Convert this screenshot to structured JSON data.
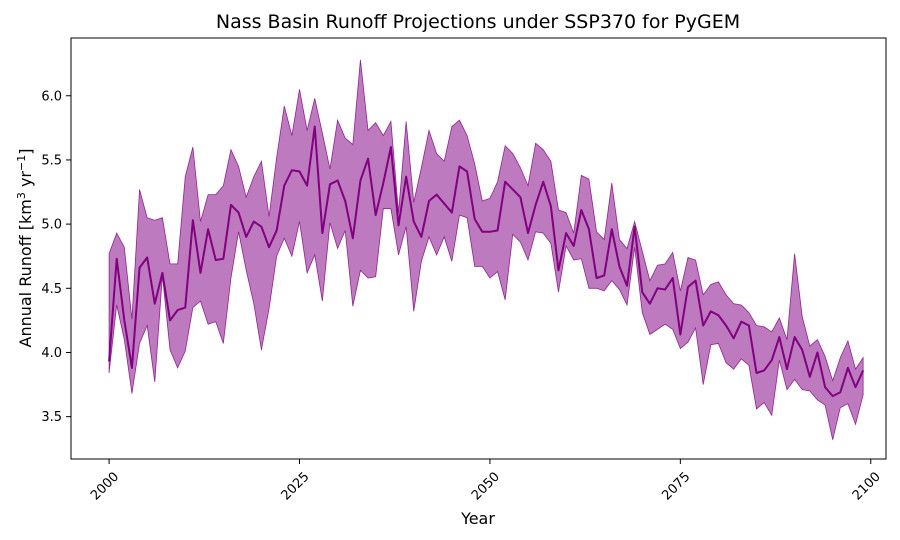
{
  "chart_data": {
    "type": "area",
    "title": "Nass Basin Runoff Projections under SSP370 for PyGEM",
    "xlabel": "Year",
    "ylabel_main": "Annual Runoff [km",
    "ylabel_sup1": "3",
    "ylabel_mid": " yr",
    "ylabel_sup2": "−1",
    "ylabel_end": "]",
    "xlim": [
      1995,
      2102
    ],
    "ylim": [
      3.17,
      6.45
    ],
    "xticks": [
      2000,
      2025,
      2050,
      2075,
      2100
    ],
    "xtick_labels": [
      "2000",
      "2025",
      "2050",
      "2075",
      "2100"
    ],
    "yticks": [
      3.5,
      4.0,
      4.5,
      5.0,
      5.5,
      6.0
    ],
    "ytick_labels": [
      "3.5",
      "4.0",
      "4.5",
      "5.0",
      "5.5",
      "6.0"
    ],
    "line_color": "#800080",
    "band_color": "#a241a2",
    "years_start": 2000,
    "mean": [
      3.93,
      4.73,
      4.25,
      3.88,
      4.66,
      4.74,
      4.38,
      4.62,
      4.25,
      4.33,
      4.35,
      5.03,
      4.62,
      4.96,
      4.72,
      4.73,
      5.15,
      5.09,
      4.9,
      5.02,
      4.98,
      4.82,
      4.95,
      5.3,
      5.42,
      5.41,
      5.3,
      5.76,
      4.93,
      5.31,
      5.34,
      5.18,
      4.89,
      5.34,
      5.51,
      5.07,
      5.32,
      5.6,
      4.99,
      5.37,
      5.02,
      4.9,
      5.18,
      5.23,
      5.16,
      5.09,
      5.45,
      5.41,
      5.04,
      4.94,
      4.94,
      4.95,
      5.33,
      5.27,
      5.21,
      4.93,
      5.15,
      5.33,
      5.14,
      4.64,
      4.93,
      4.83,
      5.11,
      4.96,
      4.58,
      4.6,
      4.96,
      4.67,
      4.52,
      4.98,
      4.47,
      4.38,
      4.5,
      4.49,
      4.58,
      4.14,
      4.51,
      4.56,
      4.21,
      4.32,
      4.29,
      4.21,
      4.11,
      4.24,
      4.21,
      3.84,
      3.86,
      3.94,
      4.12,
      3.87,
      4.12,
      4.02,
      3.81,
      4.0,
      3.73,
      3.66,
      3.69,
      3.88,
      3.73,
      3.86
    ],
    "upper": [
      4.77,
      4.93,
      4.82,
      4.26,
      5.27,
      5.05,
      5.03,
      5.05,
      4.69,
      4.69,
      5.37,
      5.6,
      5.02,
      5.23,
      5.23,
      5.3,
      5.58,
      5.45,
      5.21,
      5.37,
      5.49,
      5.06,
      5.52,
      5.92,
      5.69,
      6.05,
      5.73,
      5.98,
      5.71,
      5.43,
      5.81,
      5.67,
      5.62,
      6.28,
      5.73,
      5.79,
      5.69,
      5.8,
      5.09,
      5.8,
      5.17,
      5.44,
      5.73,
      5.55,
      5.49,
      5.76,
      5.81,
      5.69,
      5.47,
      5.18,
      5.2,
      5.33,
      5.61,
      5.55,
      5.44,
      5.3,
      5.63,
      5.58,
      5.49,
      5.11,
      5.09,
      4.93,
      5.38,
      5.35,
      4.94,
      4.88,
      5.32,
      4.88,
      4.81,
      5.02,
      4.79,
      4.56,
      4.68,
      4.69,
      4.78,
      4.48,
      4.74,
      4.72,
      4.45,
      4.53,
      4.55,
      4.45,
      4.38,
      4.37,
      4.31,
      4.21,
      4.2,
      4.16,
      4.27,
      4.1,
      4.77,
      4.28,
      4.05,
      4.1,
      3.97,
      3.78,
      3.96,
      4.09,
      3.87,
      3.96
    ],
    "lower": [
      3.84,
      4.37,
      4.1,
      3.68,
      4.07,
      4.21,
      3.77,
      4.6,
      4.02,
      3.88,
      4.01,
      4.35,
      4.4,
      4.22,
      4.24,
      4.07,
      4.58,
      4.94,
      4.64,
      4.38,
      4.02,
      4.34,
      4.75,
      4.89,
      4.75,
      5.02,
      4.62,
      4.76,
      4.4,
      5.01,
      4.81,
      4.95,
      4.36,
      4.64,
      4.58,
      4.59,
      5.12,
      5.12,
      4.76,
      4.98,
      4.32,
      4.71,
      4.9,
      4.76,
      4.9,
      4.71,
      5.07,
      5.05,
      4.67,
      4.67,
      4.58,
      4.63,
      4.41,
      4.92,
      4.86,
      4.72,
      4.94,
      4.93,
      4.85,
      4.47,
      4.83,
      4.72,
      4.73,
      4.5,
      4.5,
      4.48,
      4.56,
      4.49,
      4.37,
      4.82,
      4.31,
      4.14,
      4.18,
      4.22,
      4.18,
      4.03,
      4.08,
      4.19,
      3.75,
      4.06,
      4.07,
      3.92,
      3.87,
      3.95,
      3.9,
      3.56,
      3.61,
      3.51,
      3.94,
      3.71,
      3.79,
      3.71,
      3.7,
      3.63,
      3.59,
      3.32,
      3.57,
      3.6,
      3.44,
      3.67
    ]
  }
}
